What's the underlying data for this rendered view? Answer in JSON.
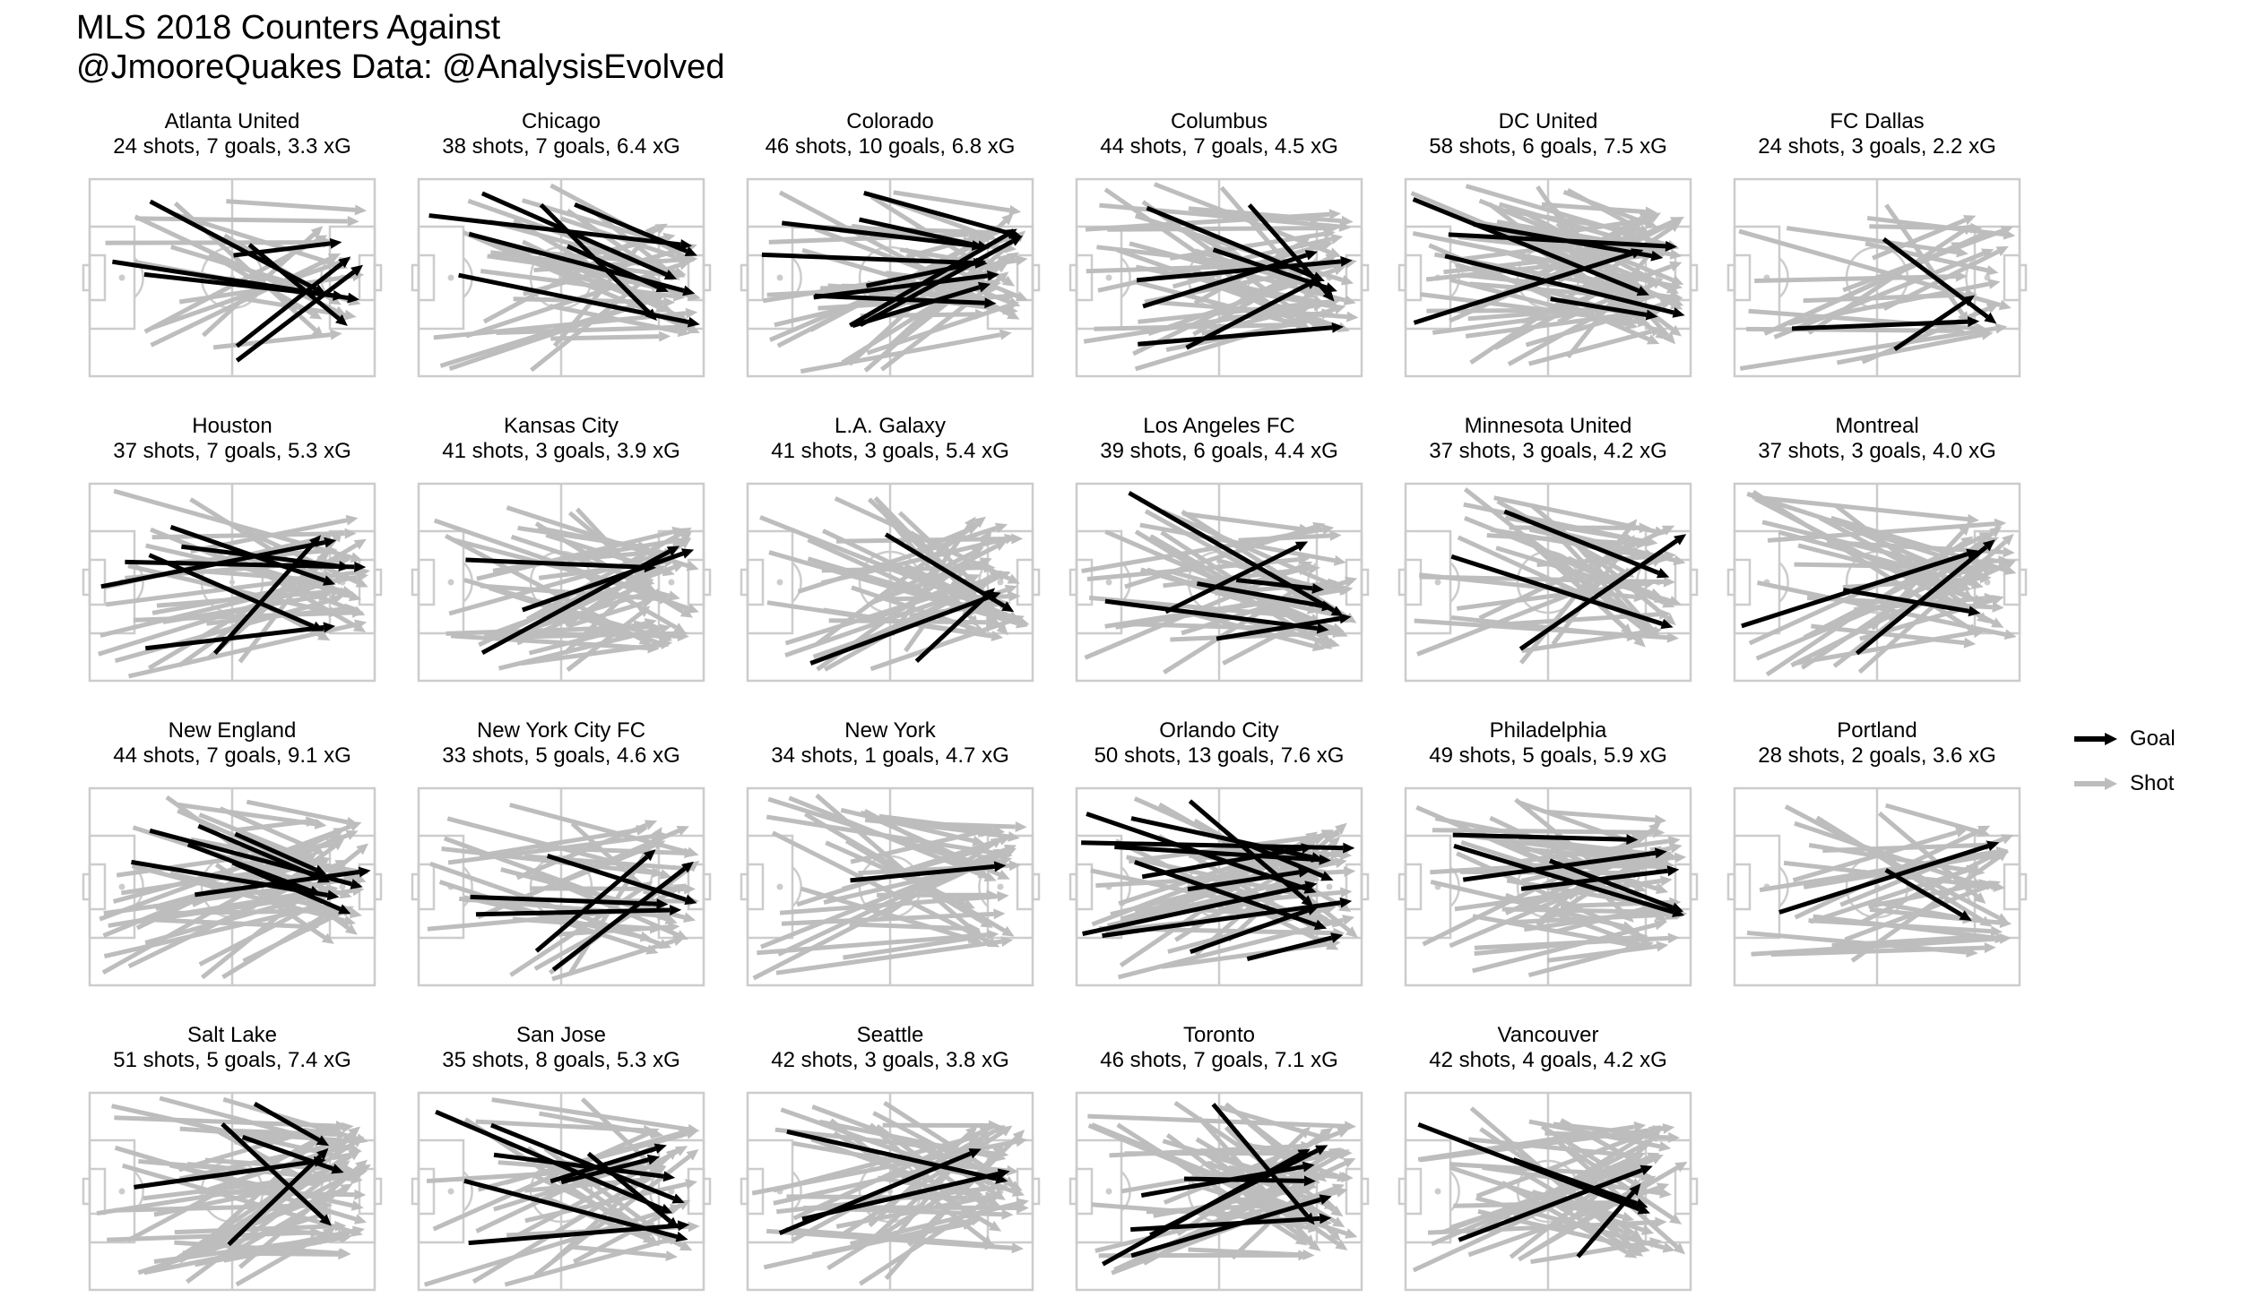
{
  "title": "MLS 2018 Counters Against",
  "subtitle": "@JmooreQuakes Data: @AnalysisEvolved",
  "colors": {
    "goal": "#000000",
    "shot": "#bdbdbd",
    "pitch": "#cccccc"
  },
  "legend": [
    {
      "label": "Goal",
      "key": "goal"
    },
    {
      "label": "Shot",
      "key": "shot"
    }
  ],
  "chart_data": {
    "type": "arrow-map",
    "panels": [
      {
        "team": "Atlanta United",
        "summary": "24 shots, 7 goals, 3.3 xG",
        "shots": 24,
        "goals": 7,
        "xg": 3.3
      },
      {
        "team": "Chicago",
        "summary": "38 shots, 7 goals, 6.4 xG",
        "shots": 38,
        "goals": 7,
        "xg": 6.4
      },
      {
        "team": "Colorado",
        "summary": "46 shots, 10 goals, 6.8 xG",
        "shots": 46,
        "goals": 10,
        "xg": 6.8
      },
      {
        "team": "Columbus",
        "summary": "44 shots, 7 goals, 4.5 xG",
        "shots": 44,
        "goals": 7,
        "xg": 4.5
      },
      {
        "team": "DC United",
        "summary": "58 shots, 6 goals, 7.5 xG",
        "shots": 58,
        "goals": 6,
        "xg": 7.5
      },
      {
        "team": "FC Dallas",
        "summary": "24 shots, 3 goals, 2.2 xG",
        "shots": 24,
        "goals": 3,
        "xg": 2.2
      },
      {
        "team": "Houston",
        "summary": "37 shots, 7 goals, 5.3 xG",
        "shots": 37,
        "goals": 7,
        "xg": 5.3
      },
      {
        "team": "Kansas City",
        "summary": "41 shots, 3 goals, 3.9 xG",
        "shots": 41,
        "goals": 3,
        "xg": 3.9
      },
      {
        "team": "L.A. Galaxy",
        "summary": "41 shots, 3 goals, 5.4 xG",
        "shots": 41,
        "goals": 3,
        "xg": 5.4
      },
      {
        "team": "Los Angeles FC",
        "summary": "39 shots, 6 goals, 4.4 xG",
        "shots": 39,
        "goals": 6,
        "xg": 4.4
      },
      {
        "team": "Minnesota United",
        "summary": "37 shots, 3 goals, 4.2 xG",
        "shots": 37,
        "goals": 3,
        "xg": 4.2
      },
      {
        "team": "Montreal",
        "summary": "37 shots, 3 goals, 4.0 xG",
        "shots": 37,
        "goals": 3,
        "xg": 4.0
      },
      {
        "team": "New England",
        "summary": "44 shots, 7 goals, 9.1 xG",
        "shots": 44,
        "goals": 7,
        "xg": 9.1
      },
      {
        "team": "New York City FC",
        "summary": "33 shots, 5 goals, 4.6 xG",
        "shots": 33,
        "goals": 5,
        "xg": 4.6
      },
      {
        "team": "New York",
        "summary": "34 shots, 1 goals, 4.7 xG",
        "shots": 34,
        "goals": 1,
        "xg": 4.7
      },
      {
        "team": "Orlando City",
        "summary": "50 shots, 13 goals, 7.6 xG",
        "shots": 50,
        "goals": 13,
        "xg": 7.6
      },
      {
        "team": "Philadelphia",
        "summary": "49 shots, 5 goals, 5.9 xG",
        "shots": 49,
        "goals": 5,
        "xg": 5.9
      },
      {
        "team": "Portland",
        "summary": "28 shots, 2 goals, 3.6 xG",
        "shots": 28,
        "goals": 2,
        "xg": 3.6
      },
      {
        "team": "Salt Lake",
        "summary": "51 shots, 5 goals, 7.4 xG",
        "shots": 51,
        "goals": 5,
        "xg": 7.4
      },
      {
        "team": "San Jose",
        "summary": "35 shots, 8 goals, 5.3 xG",
        "shots": 35,
        "goals": 8,
        "xg": 5.3
      },
      {
        "team": "Seattle",
        "summary": "42 shots, 3 goals, 3.8 xG",
        "shots": 42,
        "goals": 3,
        "xg": 3.8
      },
      {
        "team": "Toronto",
        "summary": "46 shots, 7 goals, 7.1 xG",
        "shots": 46,
        "goals": 7,
        "xg": 7.1
      },
      {
        "team": "Vancouver",
        "summary": "42 shots, 4 goals, 4.2 xG",
        "shots": 42,
        "goals": 4,
        "xg": 4.2
      }
    ]
  }
}
